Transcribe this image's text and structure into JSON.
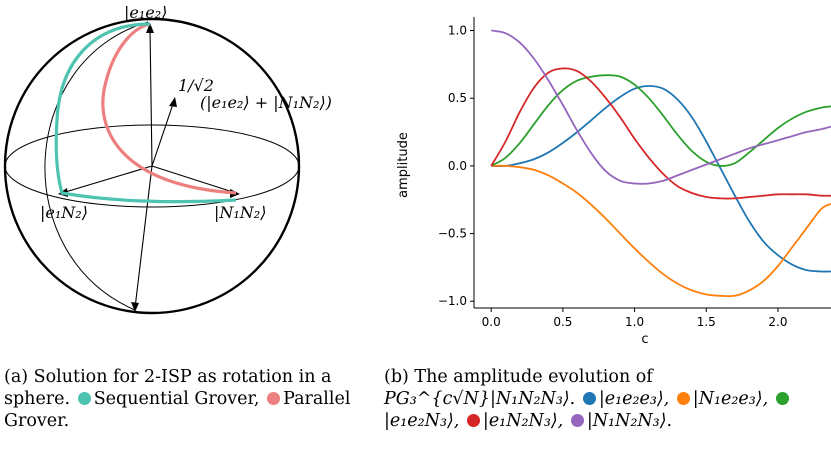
{
  "figure_a": {
    "labels": {
      "top": "|e₁e₂⟩",
      "superpos_frac": "1/√2",
      "superpos": "(|e₁e₂⟩ + |N₁N₂⟩)",
      "left": "|e₁N₂⟩",
      "right": "|N₁N₂⟩"
    },
    "colors": {
      "sequential": "#4ec4b0",
      "parallel": "#ee7f7f"
    }
  },
  "caption_a": {
    "prefix": "(a) Solution for 2-ISP as rotation in a sphere.",
    "seq": "Sequential Grover,",
    "par": "Parallel Grover."
  },
  "caption_b": {
    "prefix": "(b) The amplitude evolution of",
    "op": "PG₃^{c√N}|N₁N₂N₃⟩.",
    "items": [
      "|e₁e₂e₃⟩,",
      "|N₁e₂e₃⟩,",
      "|e₁e₂N₃⟩,",
      "|e₁N₂N₃⟩,",
      "|N₁N₂N₃⟩."
    ],
    "colors": [
      "#1f77b4",
      "#ff7f0e",
      "#2ca02c",
      "#d62728",
      "#9467bd"
    ]
  },
  "chart_data": {
    "type": "line",
    "xlabel": "c",
    "ylabel": "amplitude",
    "xlim": [
      -0.12,
      2.37
    ],
    "ylim": [
      -1.05,
      1.1
    ],
    "xticks": [
      0.0,
      0.5,
      1.0,
      1.5,
      2.0
    ],
    "xtick_labels": [
      "0.0",
      "0.5",
      "1.0",
      "1.5",
      "2.0"
    ],
    "yticks": [
      1.0,
      0.5,
      0.0,
      -0.5,
      -1.0
    ],
    "ytick_labels": [
      "1.0",
      "0.5",
      "0.0",
      "−0.5",
      "−1.0"
    ],
    "grid": false,
    "x": [
      0.0,
      0.1,
      0.2,
      0.3,
      0.4,
      0.5,
      0.6,
      0.7,
      0.8,
      0.9,
      1.0,
      1.1,
      1.2,
      1.3,
      1.4,
      1.5,
      1.6,
      1.7,
      1.8,
      1.9,
      2.0,
      2.1,
      2.2,
      2.3,
      2.37
    ],
    "series": [
      {
        "color": "#1f77b4",
        "values": [
          0.0,
          0.0,
          0.02,
          0.05,
          0.1,
          0.17,
          0.25,
          0.34,
          0.43,
          0.51,
          0.57,
          0.59,
          0.57,
          0.49,
          0.36,
          0.18,
          -0.02,
          -0.22,
          -0.41,
          -0.56,
          -0.66,
          -0.73,
          -0.77,
          -0.78,
          -0.78
        ]
      },
      {
        "color": "#ff7f0e",
        "values": [
          0.0,
          0.0,
          -0.01,
          -0.03,
          -0.07,
          -0.13,
          -0.2,
          -0.29,
          -0.39,
          -0.5,
          -0.61,
          -0.71,
          -0.8,
          -0.87,
          -0.92,
          -0.95,
          -0.96,
          -0.96,
          -0.92,
          -0.85,
          -0.74,
          -0.6,
          -0.46,
          -0.32,
          -0.28
        ]
      },
      {
        "color": "#2ca02c",
        "values": [
          0.0,
          0.06,
          0.17,
          0.31,
          0.45,
          0.56,
          0.63,
          0.66,
          0.67,
          0.66,
          0.6,
          0.5,
          0.37,
          0.23,
          0.11,
          0.03,
          0.0,
          0.02,
          0.1,
          0.19,
          0.28,
          0.35,
          0.4,
          0.43,
          0.44
        ]
      },
      {
        "color": "#d62728",
        "values": [
          0.0,
          0.18,
          0.4,
          0.58,
          0.69,
          0.72,
          0.7,
          0.62,
          0.5,
          0.36,
          0.2,
          0.06,
          -0.06,
          -0.15,
          -0.2,
          -0.23,
          -0.24,
          -0.24,
          -0.23,
          -0.22,
          -0.21,
          -0.21,
          -0.21,
          -0.22,
          -0.22
        ]
      },
      {
        "color": "#9467bd",
        "values": [
          1.0,
          0.98,
          0.91,
          0.79,
          0.63,
          0.45,
          0.26,
          0.09,
          -0.04,
          -0.11,
          -0.13,
          -0.13,
          -0.11,
          -0.07,
          -0.03,
          0.01,
          0.05,
          0.09,
          0.13,
          0.16,
          0.19,
          0.22,
          0.25,
          0.27,
          0.29
        ]
      }
    ]
  }
}
